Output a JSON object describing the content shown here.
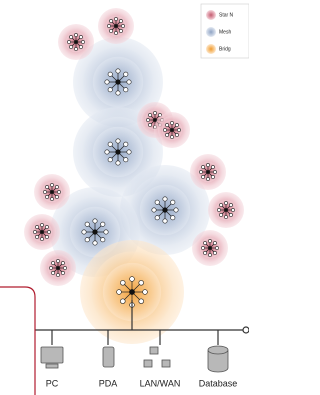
{
  "legend": [
    {
      "label": "Star N"
    },
    {
      "label": "Mesh"
    },
    {
      "label": "Bridg"
    }
  ],
  "devices": [
    {
      "label": "PC"
    },
    {
      "label": "PDA"
    },
    {
      "label": "LAN/WAN"
    },
    {
      "label": "Database"
    }
  ]
}
